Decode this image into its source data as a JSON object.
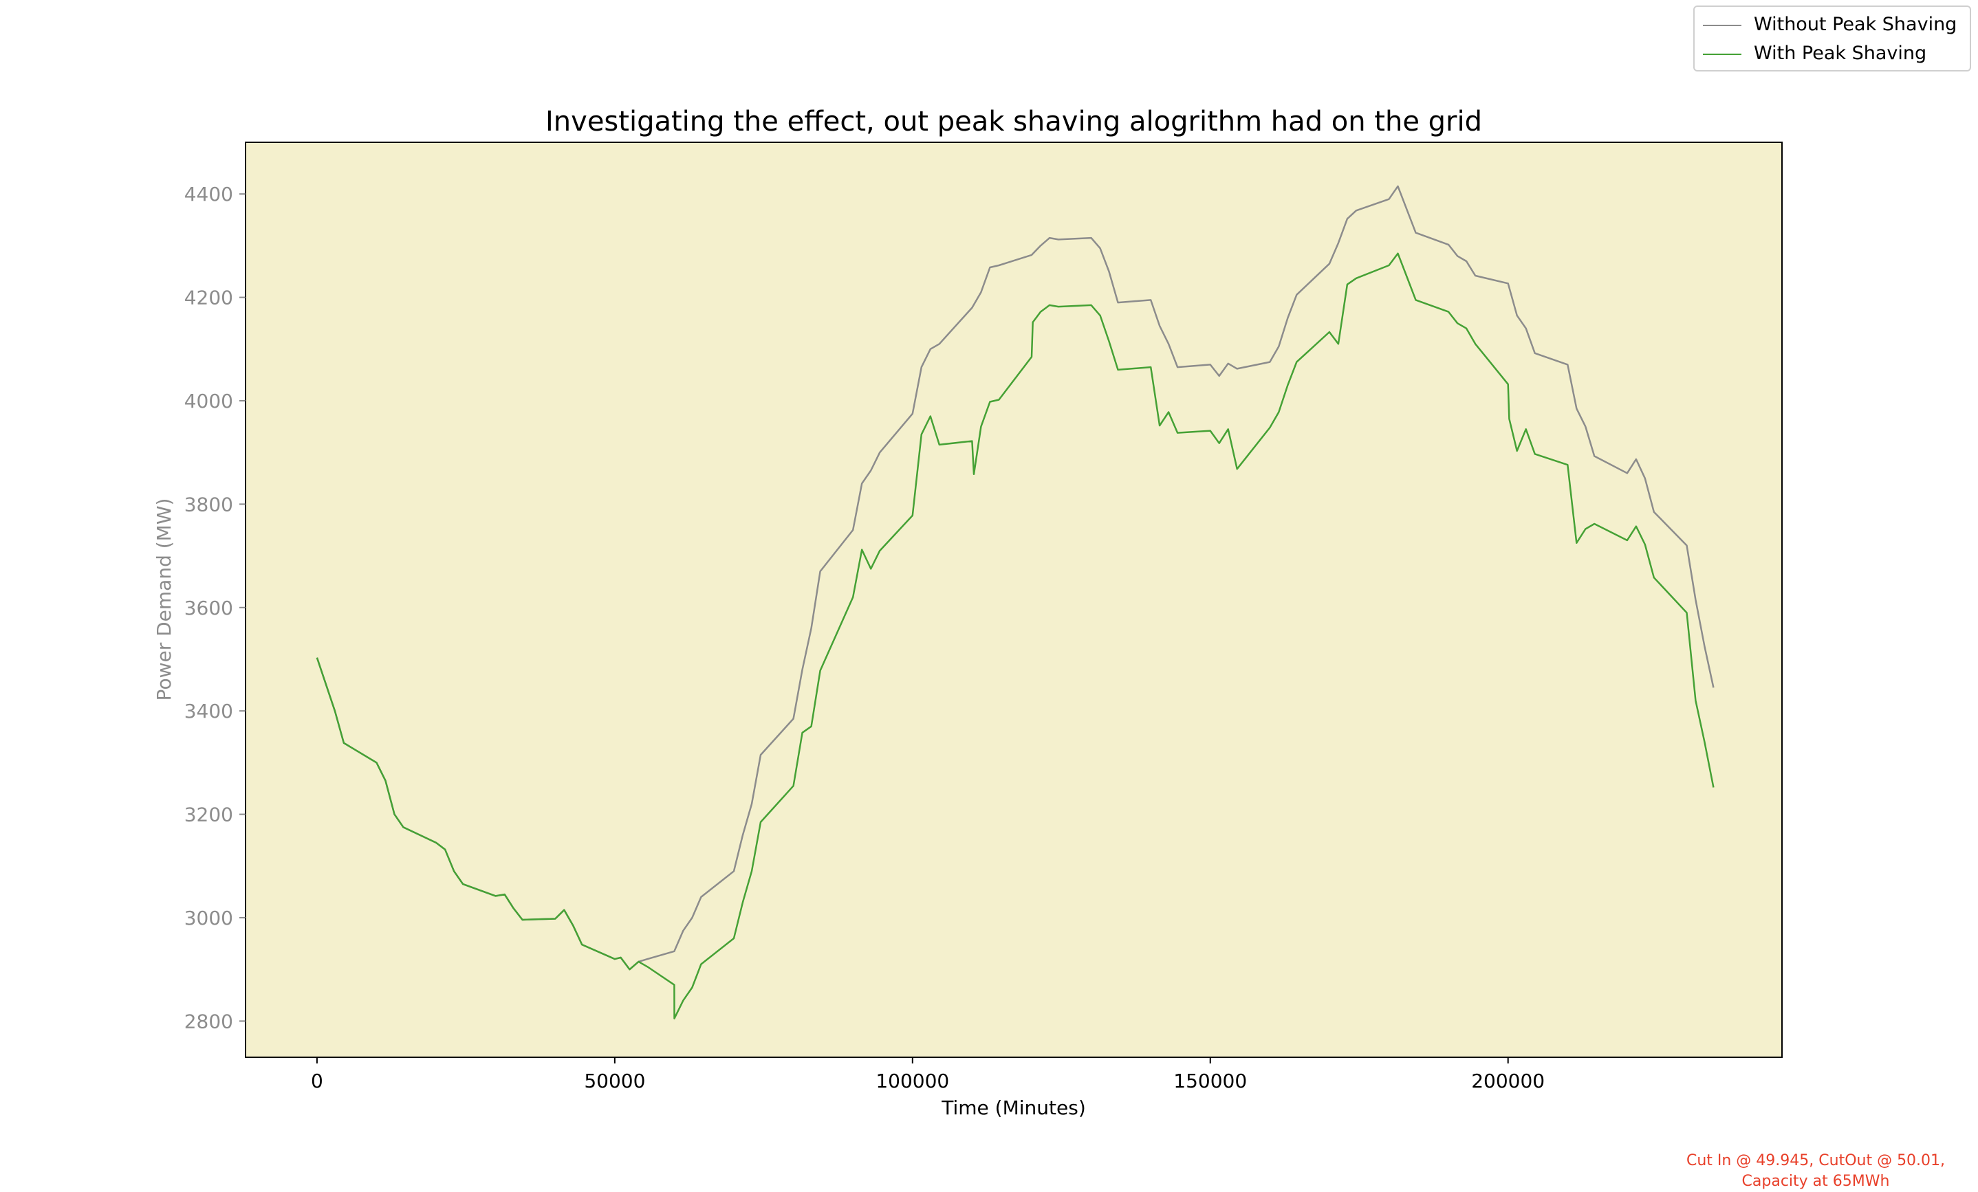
{
  "chart_data": {
    "type": "line",
    "title": "Investigating the effect, out peak shaving alogrithm had on the grid",
    "xlabel": "Time (Minutes)",
    "ylabel": "Power Demand (MW)",
    "xlim": [
      -12000,
      246000
    ],
    "ylim": [
      2730,
      4500
    ],
    "xticks": [
      0,
      50000,
      100000,
      150000,
      200000
    ],
    "yticks": [
      2800,
      3000,
      3200,
      3400,
      3600,
      3800,
      4000,
      4200,
      4400
    ],
    "plot_background": "#f4f0cd",
    "legend_position": "upper-right-outside",
    "grid": false,
    "series": [
      {
        "name": "Without Peak Shaving",
        "color": "#8c8c8c",
        "x": [
          0,
          3000,
          4500,
          10000,
          11500,
          13000,
          14500,
          20000,
          21500,
          23000,
          24500,
          30000,
          31500,
          33000,
          34500,
          40000,
          41500,
          43000,
          44500,
          50000,
          51000,
          52500,
          54000,
          55500,
          60000,
          61500,
          63000,
          64500,
          70000,
          71500,
          73000,
          74500,
          80000,
          81500,
          83000,
          84500,
          90000,
          91500,
          93000,
          94500,
          100000,
          101500,
          103000,
          104500,
          110000,
          111500,
          113000,
          114500,
          120000,
          121500,
          123000,
          124500,
          130000,
          131500,
          133000,
          134500,
          140000,
          141500,
          143000,
          144500,
          150000,
          151500,
          153000,
          154500,
          160000,
          161500,
          163000,
          164500,
          170000,
          171500,
          173000,
          174500,
          180000,
          181500,
          183000,
          184500,
          190000,
          191500,
          193000,
          194500,
          200000,
          201500,
          203000,
          204500,
          210000,
          211500,
          213000,
          214500,
          220000,
          221500,
          223000,
          224500,
          230000,
          231500,
          233000,
          234500
        ],
        "values": [
          3503,
          3400,
          3338,
          3300,
          3265,
          3200,
          3175,
          3145,
          3132,
          3090,
          3065,
          3042,
          3045,
          3018,
          2996,
          2998,
          3015,
          2985,
          2948,
          2920,
          2923,
          2900,
          2915,
          2920,
          2935,
          2975,
          3000,
          3040,
          3090,
          3160,
          3220,
          3315,
          3385,
          3480,
          3560,
          3670,
          3750,
          3840,
          3865,
          3900,
          3975,
          4065,
          4100,
          4110,
          4180,
          4210,
          4258,
          4262,
          4282,
          4300,
          4315,
          4312,
          4315,
          4295,
          4250,
          4190,
          4195,
          4145,
          4110,
          4065,
          4070,
          4048,
          4072,
          4062,
          4075,
          4105,
          4160,
          4205,
          4265,
          4305,
          4352,
          4368,
          4390,
          4415,
          4370,
          4325,
          4302,
          4280,
          4270,
          4242,
          4227,
          4165,
          4140,
          4092,
          4070,
          3985,
          3950,
          3893,
          3860,
          3887,
          3850,
          3785,
          3720,
          3615,
          3525,
          3445
        ]
      },
      {
        "name": "With Peak Shaving",
        "color": "#45a135",
        "x": [
          0,
          3000,
          4500,
          10000,
          11500,
          13000,
          14500,
          20000,
          21500,
          23000,
          24500,
          30000,
          31500,
          33000,
          34500,
          40000,
          41500,
          43000,
          44500,
          50000,
          51000,
          52500,
          54000,
          55500,
          60000,
          60001,
          61500,
          63000,
          64500,
          70000,
          71500,
          73000,
          74500,
          80000,
          81500,
          83000,
          84500,
          90000,
          91500,
          93000,
          94500,
          100000,
          101500,
          103000,
          104500,
          110000,
          110300,
          111500,
          113000,
          114500,
          120000,
          120200,
          121500,
          123000,
          124500,
          130000,
          131500,
          133000,
          134500,
          140000,
          141500,
          143000,
          144500,
          150000,
          151500,
          153000,
          154500,
          160000,
          161500,
          163000,
          164500,
          170000,
          171500,
          173000,
          174500,
          180000,
          181500,
          183000,
          184500,
          190000,
          191500,
          193000,
          194500,
          200000,
          200200,
          201500,
          203000,
          204500,
          210000,
          211500,
          213000,
          214500,
          220000,
          221500,
          223000,
          224500,
          230000,
          231500,
          233000,
          234500
        ],
        "values": [
          3503,
          3400,
          3338,
          3300,
          3265,
          3200,
          3175,
          3145,
          3132,
          3090,
          3065,
          3042,
          3045,
          3018,
          2996,
          2998,
          3015,
          2985,
          2948,
          2920,
          2923,
          2900,
          2915,
          2905,
          2870,
          2805,
          2840,
          2865,
          2910,
          2960,
          3030,
          3090,
          3185,
          3255,
          3358,
          3370,
          3478,
          3620,
          3712,
          3675,
          3710,
          3778,
          3935,
          3970,
          3915,
          3922,
          3858,
          3950,
          3998,
          4002,
          4085,
          4152,
          4172,
          4185,
          4182,
          4185,
          4165,
          4115,
          4060,
          4065,
          3952,
          3978,
          3938,
          3942,
          3918,
          3945,
          3868,
          3948,
          3978,
          4030,
          4075,
          4133,
          4110,
          4225,
          4237,
          4262,
          4285,
          4240,
          4195,
          4172,
          4150,
          4140,
          4110,
          4032,
          3965,
          3903,
          3945,
          3897,
          3876,
          3725,
          3752,
          3762,
          3730,
          3757,
          3722,
          3658,
          3590,
          3420,
          3340,
          3252
        ]
      }
    ],
    "annotation": {
      "line1": "Cut In @ 49.945, CutOut @ 50.01,",
      "line2": "Capacity at 65MWh",
      "color": "#e8402a"
    }
  }
}
